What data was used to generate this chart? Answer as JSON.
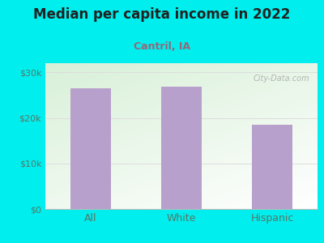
{
  "title": "Median per capita income in 2022",
  "subtitle": "Cantril, IA",
  "categories": [
    "All",
    "White",
    "Hispanic"
  ],
  "values": [
    26500,
    26800,
    18500
  ],
  "bar_color": "#b8a0cc",
  "title_fontsize": 12,
  "subtitle_fontsize": 9,
  "subtitle_color": "#996677",
  "title_color": "#222222",
  "tick_color": "#557766",
  "background_outer": "#00eeee",
  "background_inner_top_left": "#d8f0d8",
  "background_inner_bottom_right": "#f8f8f8",
  "grid_color": "#dddddd",
  "ylim": [
    0,
    32000
  ],
  "yticks": [
    0,
    10000,
    20000,
    30000
  ],
  "ytick_labels": [
    "$0",
    "$10k",
    "$20k",
    "$30k"
  ],
  "watermark": "City-Data.com"
}
